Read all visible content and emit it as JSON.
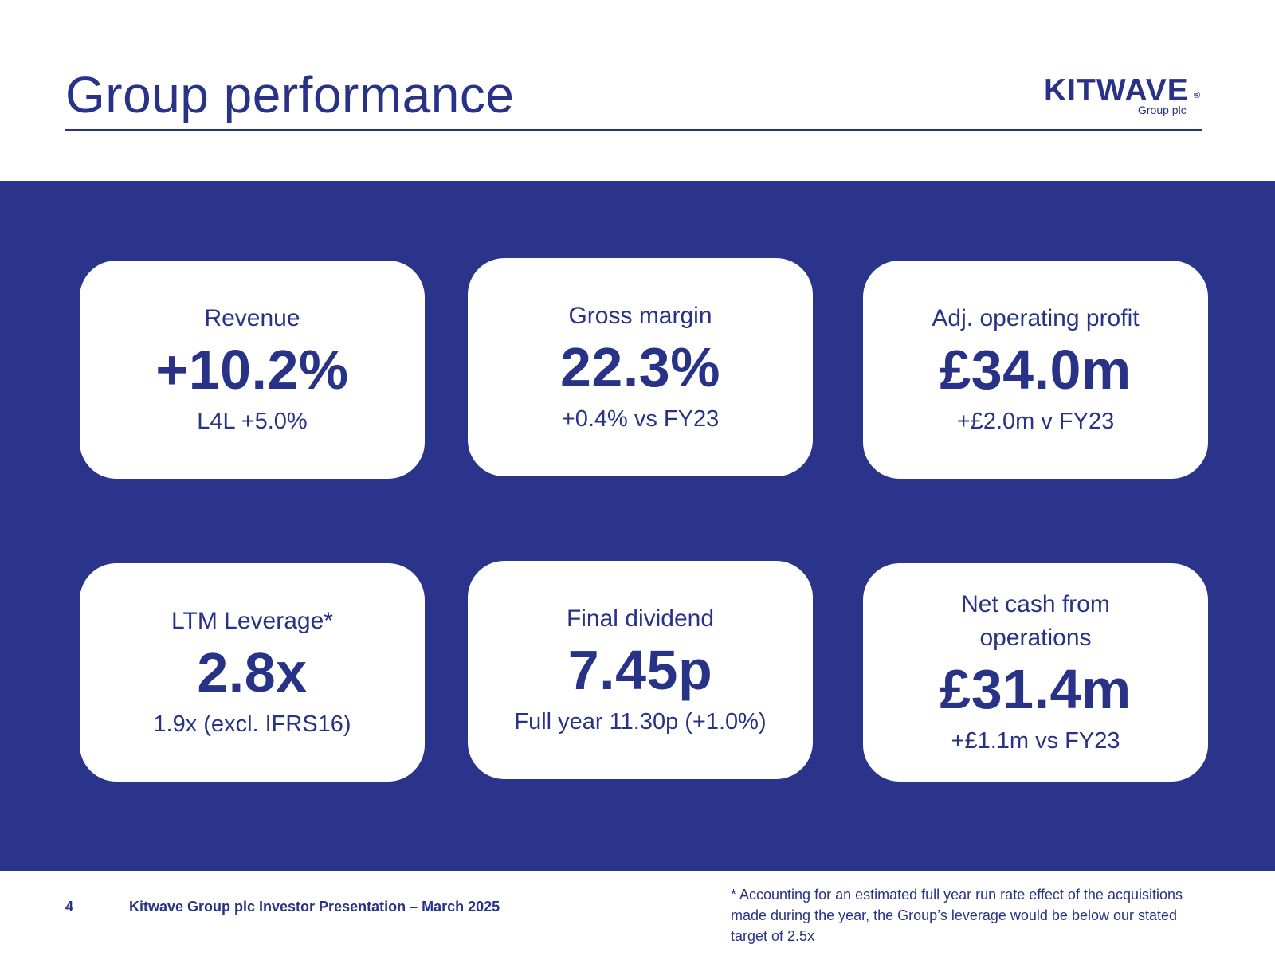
{
  "header": {
    "title": "Group performance",
    "logo_word": "KITWAVE",
    "logo_registered": "®",
    "logo_subtitle": "Group plc"
  },
  "colors": {
    "brand_navy": "#29348a",
    "text_navy": "#283387",
    "card_bg": "#ffffff"
  },
  "kpis": [
    {
      "label": "Revenue",
      "value": "+10.2%",
      "sub": "L4L +5.0%"
    },
    {
      "label": "Gross margin",
      "value": "22.3%",
      "sub": "+0.4% vs FY23"
    },
    {
      "label": "Adj. operating profit",
      "value": "£34.0m",
      "sub": "+£2.0m v FY23"
    },
    {
      "label": "LTM Leverage*",
      "value": "2.8x",
      "sub": "1.9x (excl. IFRS16)"
    },
    {
      "label": "Final dividend",
      "value": "7.45p",
      "sub": "Full year 11.30p (+1.0%)"
    },
    {
      "label": "Net cash from operations",
      "value": "£31.4m",
      "sub": "+£1.1m vs FY23"
    }
  ],
  "footer": {
    "page_number": "4",
    "presentation_title": "Kitwave Group plc Investor Presentation – March 2025",
    "footnote": "* Accounting for an estimated full year run rate effect of the acquisitions made during the year, the Group’s leverage would be below our stated target of 2.5x"
  }
}
